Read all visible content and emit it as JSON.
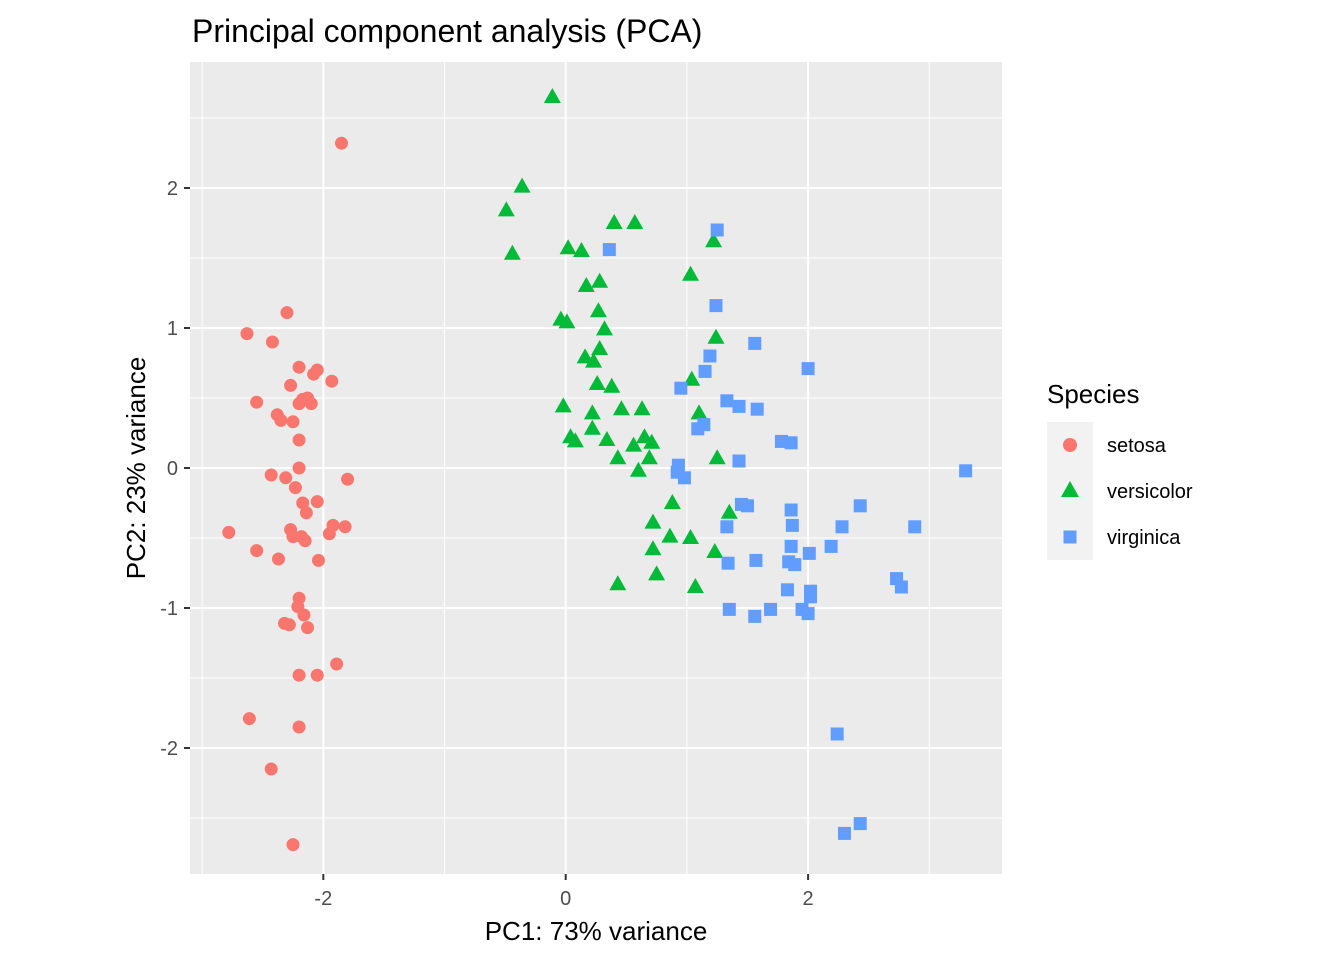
{
  "chart_data": {
    "type": "scatter",
    "title": "Principal component analysis (PCA)",
    "xlabel": "PC1: 73% variance",
    "ylabel": "PC2: 23% variance",
    "xlim": [
      -3.1,
      3.6
    ],
    "ylim": [
      -2.9,
      2.9
    ],
    "x_major_ticks": [
      -2,
      0,
      2
    ],
    "x_tick_labels": [
      "-2",
      "0",
      "2"
    ],
    "y_major_ticks": [
      -2,
      -1,
      0,
      1,
      2
    ],
    "y_tick_labels": [
      "-2",
      "-1",
      "0",
      "1",
      "2"
    ],
    "x_minor_ticks": [
      -3,
      -1,
      1,
      3
    ],
    "y_minor_ticks": [
      -2.5,
      -1.5,
      -0.5,
      0.5,
      1.5,
      2.5
    ],
    "grid": true,
    "legend": {
      "title": "Species",
      "position": "right"
    },
    "series": [
      {
        "name": "setosa",
        "color": "#F8766D",
        "shape": "circle",
        "points": [
          [
            -1.85,
            2.32
          ],
          [
            -2.3,
            1.11
          ],
          [
            -2.63,
            0.96
          ],
          [
            -2.42,
            0.9
          ],
          [
            -2.2,
            0.72
          ],
          [
            -2.05,
            0.7
          ],
          [
            -2.08,
            0.67
          ],
          [
            -1.93,
            0.62
          ],
          [
            -2.27,
            0.59
          ],
          [
            -2.17,
            0.49
          ],
          [
            -2.13,
            0.5
          ],
          [
            -2.2,
            0.46
          ],
          [
            -2.1,
            0.46
          ],
          [
            -2.55,
            0.47
          ],
          [
            -2.38,
            0.38
          ],
          [
            -2.35,
            0.34
          ],
          [
            -2.25,
            0.33
          ],
          [
            -2.2,
            0.2
          ],
          [
            -2.2,
            0.0
          ],
          [
            -2.43,
            -0.05
          ],
          [
            -2.31,
            -0.07
          ],
          [
            -1.8,
            -0.08
          ],
          [
            -2.23,
            -0.14
          ],
          [
            -2.05,
            -0.24
          ],
          [
            -2.17,
            -0.25
          ],
          [
            -2.14,
            -0.32
          ],
          [
            -2.78,
            -0.46
          ],
          [
            -1.92,
            -0.41
          ],
          [
            -2.27,
            -0.44
          ],
          [
            -1.95,
            -0.47
          ],
          [
            -1.82,
            -0.42
          ],
          [
            -2.25,
            -0.49
          ],
          [
            -2.18,
            -0.49
          ],
          [
            -2.15,
            -0.52
          ],
          [
            -2.55,
            -0.59
          ],
          [
            -2.37,
            -0.65
          ],
          [
            -2.04,
            -0.66
          ],
          [
            -2.2,
            -0.93
          ],
          [
            -2.21,
            -0.99
          ],
          [
            -2.16,
            -1.05
          ],
          [
            -2.32,
            -1.11
          ],
          [
            -2.28,
            -1.12
          ],
          [
            -2.13,
            -1.14
          ],
          [
            -1.89,
            -1.4
          ],
          [
            -2.2,
            -1.48
          ],
          [
            -2.05,
            -1.48
          ],
          [
            -2.61,
            -1.79
          ],
          [
            -2.2,
            -1.85
          ],
          [
            -2.43,
            -2.15
          ],
          [
            -2.25,
            -2.69
          ]
        ]
      },
      {
        "name": "versicolor",
        "color": "#00BA38",
        "shape": "triangle",
        "points": [
          [
            -0.11,
            2.65
          ],
          [
            -0.36,
            2.01
          ],
          [
            -0.49,
            1.84
          ],
          [
            -0.44,
            1.53
          ],
          [
            0.4,
            1.75
          ],
          [
            0.57,
            1.75
          ],
          [
            1.22,
            1.62
          ],
          [
            0.02,
            1.57
          ],
          [
            0.13,
            1.55
          ],
          [
            0.28,
            1.33
          ],
          [
            0.17,
            1.3
          ],
          [
            1.03,
            1.38
          ],
          [
            0.27,
            1.12
          ],
          [
            -0.04,
            1.06
          ],
          [
            0.01,
            1.04
          ],
          [
            0.32,
            0.99
          ],
          [
            1.24,
            0.93
          ],
          [
            0.28,
            0.85
          ],
          [
            0.16,
            0.79
          ],
          [
            0.23,
            0.76
          ],
          [
            1.04,
            0.63
          ],
          [
            0.26,
            0.6
          ],
          [
            0.38,
            0.58
          ],
          [
            -0.02,
            0.44
          ],
          [
            0.46,
            0.42
          ],
          [
            0.63,
            0.42
          ],
          [
            0.22,
            0.39
          ],
          [
            1.1,
            0.39
          ],
          [
            0.22,
            0.28
          ],
          [
            0.04,
            0.22
          ],
          [
            0.08,
            0.19
          ],
          [
            0.65,
            0.22
          ],
          [
            0.71,
            0.18
          ],
          [
            0.34,
            0.2
          ],
          [
            0.56,
            0.16
          ],
          [
            1.25,
            0.07
          ],
          [
            0.43,
            0.07
          ],
          [
            0.69,
            0.07
          ],
          [
            0.6,
            -0.02
          ],
          [
            0.88,
            -0.25
          ],
          [
            1.35,
            -0.32
          ],
          [
            0.72,
            -0.39
          ],
          [
            0.86,
            -0.49
          ],
          [
            1.03,
            -0.5
          ],
          [
            0.72,
            -0.58
          ],
          [
            1.23,
            -0.6
          ],
          [
            0.75,
            -0.76
          ],
          [
            0.43,
            -0.83
          ],
          [
            1.07,
            -0.85
          ]
        ]
      },
      {
        "name": "virginica",
        "color": "#619CFF",
        "shape": "square",
        "points": [
          [
            1.25,
            1.7
          ],
          [
            0.36,
            1.56
          ],
          [
            1.24,
            1.16
          ],
          [
            1.56,
            0.89
          ],
          [
            1.19,
            0.8
          ],
          [
            2.0,
            0.71
          ],
          [
            1.15,
            0.69
          ],
          [
            0.95,
            0.57
          ],
          [
            1.33,
            0.48
          ],
          [
            1.43,
            0.44
          ],
          [
            1.58,
            0.42
          ],
          [
            1.78,
            0.19
          ],
          [
            1.86,
            0.18
          ],
          [
            1.14,
            0.31
          ],
          [
            1.09,
            0.28
          ],
          [
            1.43,
            0.05
          ],
          [
            0.93,
            0.02
          ],
          [
            0.92,
            -0.03
          ],
          [
            0.98,
            -0.07
          ],
          [
            3.3,
            -0.02
          ],
          [
            1.45,
            -0.26
          ],
          [
            1.5,
            -0.27
          ],
          [
            2.43,
            -0.27
          ],
          [
            1.86,
            -0.3
          ],
          [
            1.87,
            -0.41
          ],
          [
            2.28,
            -0.42
          ],
          [
            2.88,
            -0.42
          ],
          [
            1.33,
            -0.42
          ],
          [
            1.86,
            -0.56
          ],
          [
            2.19,
            -0.56
          ],
          [
            2.01,
            -0.61
          ],
          [
            1.57,
            -0.66
          ],
          [
            1.84,
            -0.67
          ],
          [
            1.34,
            -0.68
          ],
          [
            1.89,
            -0.69
          ],
          [
            2.73,
            -0.79
          ],
          [
            2.77,
            -0.85
          ],
          [
            1.83,
            -0.87
          ],
          [
            2.02,
            -0.88
          ],
          [
            2.02,
            -0.92
          ],
          [
            1.35,
            -1.01
          ],
          [
            1.69,
            -1.01
          ],
          [
            1.95,
            -1.01
          ],
          [
            2.0,
            -1.04
          ],
          [
            1.56,
            -1.06
          ],
          [
            2.24,
            -1.9
          ],
          [
            2.3,
            -2.61
          ],
          [
            2.43,
            -2.54
          ]
        ]
      }
    ]
  }
}
